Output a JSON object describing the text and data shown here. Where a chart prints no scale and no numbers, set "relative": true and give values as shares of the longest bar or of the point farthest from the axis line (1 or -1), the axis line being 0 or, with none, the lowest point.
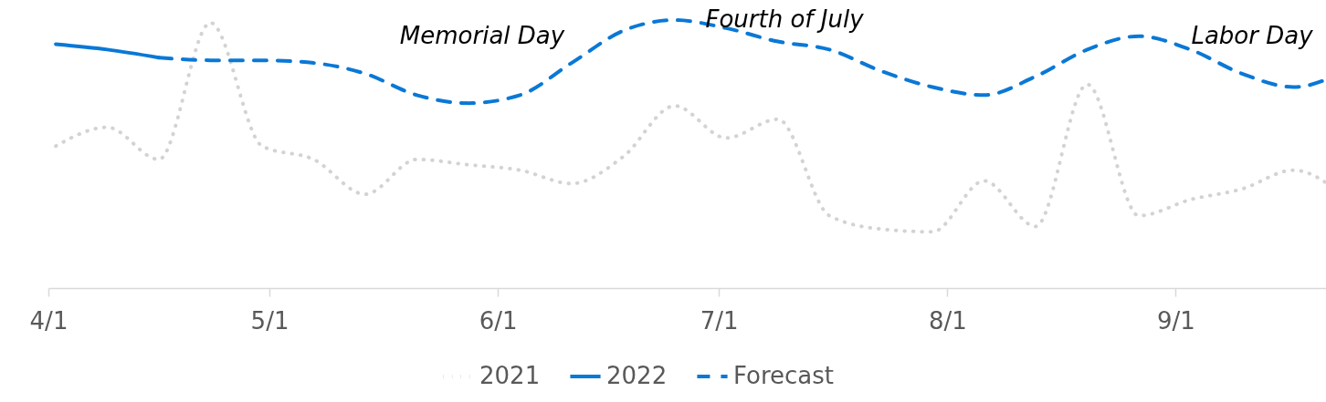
{
  "chart_data": {
    "type": "line",
    "relative": true,
    "legend": "bottom",
    "marker": "none",
    "x": [
      "--04-02",
      "--04-09",
      "--04-16",
      "--04-23",
      "--04-30",
      "--05-07",
      "--05-14",
      "--05-21",
      "--05-28",
      "--06-04",
      "--06-11",
      "--06-18",
      "--06-25",
      "--07-02",
      "--07-09",
      "--07-16",
      "--07-23",
      "--07-30",
      "--08-06",
      "--08-13",
      "--08-20",
      "--08-27",
      "--09-03",
      "--09-10",
      "--09-17",
      "--09-24"
    ],
    "xlim": [
      "--04-01",
      "--09-24"
    ],
    "xticks": [
      {
        "value": "--04-01",
        "label": "4/1"
      },
      {
        "value": "--05-01",
        "label": "5/1"
      },
      {
        "value": "--06-01",
        "label": "6/1"
      },
      {
        "value": "--07-01",
        "label": "7/1"
      },
      {
        "value": "--08-01",
        "label": "8/1"
      },
      {
        "value": "--09-01",
        "label": "9/1"
      }
    ],
    "series": [
      {
        "name": "2021",
        "color": "#d3d3d3",
        "line_style": "dotted",
        "values": [
          0.53,
          0.6,
          0.48,
          0.99,
          0.53,
          0.48,
          0.35,
          0.48,
          0.46,
          0.44,
          0.39,
          0.49,
          0.68,
          0.56,
          0.63,
          0.27,
          0.22,
          0.21,
          0.4,
          0.23,
          0.76,
          0.27,
          0.33,
          0.37,
          0.44,
          0.34
        ]
      },
      {
        "name": "2022",
        "color": "#0a78d6",
        "line_style": "solid",
        "values": [
          0.91,
          0.89,
          0.86,
          null,
          null,
          null,
          null,
          null,
          null,
          null,
          null,
          null,
          null,
          null,
          null,
          null,
          null,
          null,
          null,
          null,
          null,
          null,
          null,
          null,
          null,
          null
        ]
      },
      {
        "name": "Forecast",
        "color": "#0a78d6",
        "line_style": "dashed",
        "values": [
          null,
          null,
          0.86,
          0.85,
          0.85,
          0.84,
          0.8,
          0.72,
          0.69,
          0.72,
          0.84,
          0.96,
          1.0,
          0.97,
          0.92,
          0.89,
          0.81,
          0.75,
          0.72,
          0.79,
          0.89,
          0.94,
          0.89,
          0.8,
          0.75,
          0.81
        ]
      }
    ],
    "annotations": [
      "Memorial Day",
      "Fourth of July",
      "Labor Day"
    ]
  }
}
